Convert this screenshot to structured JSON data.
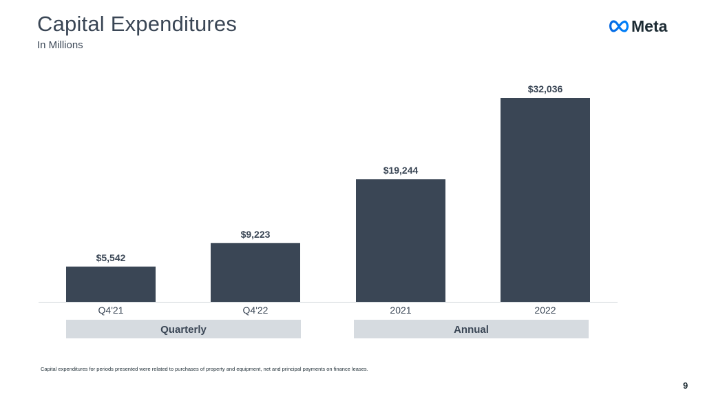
{
  "header": {
    "title": "Capital Expenditures",
    "subtitle": "In Millions",
    "logo_text": "Meta",
    "logo_icon": "meta-infinity-logo"
  },
  "chart_data": {
    "type": "bar",
    "title": "Capital Expenditures",
    "subtitle": "In Millions",
    "categories": [
      "Q4'21",
      "Q4'22",
      "2021",
      "2022"
    ],
    "values": [
      5542,
      9223,
      19244,
      32036
    ],
    "value_labels": [
      "$5,542",
      "$9,223",
      "$19,244",
      "$32,036"
    ],
    "groups": [
      {
        "label": "Quarterly",
        "categories": [
          "Q4'21",
          "Q4'22"
        ]
      },
      {
        "label": "Annual",
        "categories": [
          "2021",
          "2022"
        ]
      }
    ],
    "xlabel": "",
    "ylabel": "",
    "ylim": [
      0,
      32036
    ],
    "grid": false,
    "legend": "none",
    "bar_color": "#3a4655",
    "group_band_color": "#d6dbe0"
  },
  "footnote": "Capital expenditures for periods presented were related to purchases of property and equipment, net and principal payments on finance leases.",
  "page_number": "9"
}
